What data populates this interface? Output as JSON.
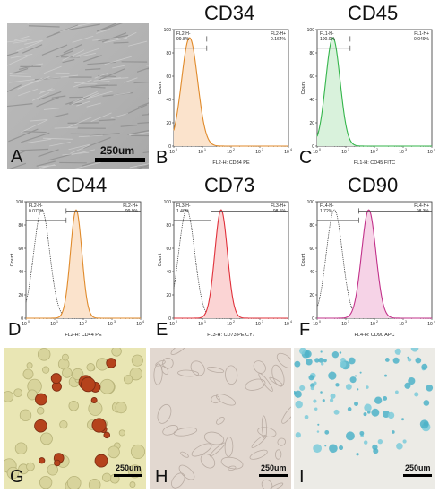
{
  "panels": {
    "A": {
      "letter": "A",
      "scale": "250um"
    },
    "G": {
      "letter": "G",
      "scale": "250um"
    },
    "H": {
      "letter": "H",
      "scale": "250um"
    },
    "I": {
      "letter": "I",
      "scale": "250um"
    }
  },
  "histograms": [
    {
      "id": "B",
      "letter": "B",
      "title": "CD34",
      "color": "#e08a2a",
      "fill": "#fbe3cc",
      "neg_label": "FL2-H-",
      "neg_pct": "99.8%",
      "pos_label": "FL2-H+",
      "pos_pct": "0.164%",
      "xlabel": "FL2-H: CD34 PE",
      "ylabel": "Count",
      "peak": 0.55,
      "width": 0.28,
      "isotype": false
    },
    {
      "id": "C",
      "letter": "C",
      "title": "CD45",
      "color": "#33b54a",
      "fill": "#d9f2dc",
      "neg_label": "FL1-H-",
      "neg_pct": "100.0%",
      "pos_label": "FL1-H+",
      "pos_pct": "0.049%",
      "xlabel": "FL1-H: CD45 FITC",
      "ylabel": "Count",
      "peak": 0.55,
      "width": 0.25,
      "isotype": false
    },
    {
      "id": "D",
      "letter": "D",
      "title": "CD44",
      "color": "#e08a2a",
      "fill": "#fbe3cc",
      "neg_label": "FL2-H-",
      "neg_pct": "0.073%",
      "pos_label": "FL2-H+",
      "pos_pct": "99.9%",
      "xlabel": "FL2-H: CD44 PE",
      "ylabel": "Count",
      "peak": 1.75,
      "width": 0.2,
      "isotype": true,
      "iso_peak": 0.55
    },
    {
      "id": "E",
      "letter": "E",
      "title": "CD73",
      "color": "#e0303a",
      "fill": "#fbd4d4",
      "neg_label": "FL3-H-",
      "neg_pct": "1.46%",
      "pos_label": "FL3-H+",
      "pos_pct": "98.5%",
      "xlabel": "FL3-H: CD73 PE CY7",
      "ylabel": "Count",
      "peak": 1.65,
      "width": 0.22,
      "isotype": true,
      "iso_peak": 0.45
    },
    {
      "id": "F",
      "letter": "F",
      "title": "CD90",
      "color": "#c2318a",
      "fill": "#f6d3e7",
      "neg_label": "FL4-H-",
      "neg_pct": "1.72%",
      "pos_label": "FL4-H+",
      "pos_pct": "98.3%",
      "xlabel": "FL4-H: CD90 APC",
      "ylabel": "Count",
      "peak": 1.8,
      "width": 0.25,
      "isotype": true,
      "iso_peak": 0.6
    }
  ],
  "axis": {
    "y_ticks": [
      "0",
      "20",
      "40",
      "60",
      "80",
      "100"
    ],
    "x_ticks": [
      "10",
      "10",
      "10",
      "10",
      "10"
    ],
    "x_exp": [
      "0",
      "1",
      "2",
      "3",
      "4"
    ]
  }
}
